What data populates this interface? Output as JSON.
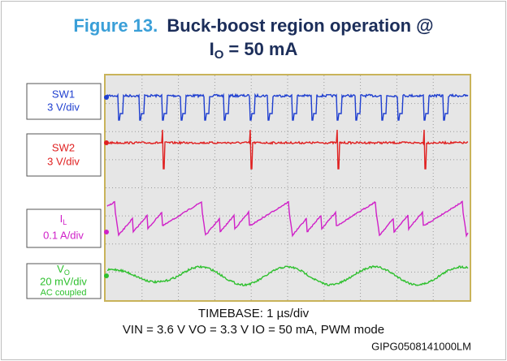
{
  "header": {
    "figure_number": "Figure 13.",
    "title_line1": "Buck-boost region operation @",
    "title_line2_main": "I",
    "title_line2_sub": "O",
    "title_line2_rest": "= 50 mA"
  },
  "channels": [
    {
      "name": "SW1",
      "scale": "3 V/div"
    },
    {
      "name": "SW2",
      "scale": "3 V/div"
    },
    {
      "name_main": "I",
      "name_sub": "L",
      "scale": "0.1 A/div"
    },
    {
      "name_main": "V",
      "name_sub": "O",
      "scale": "20 mV/div",
      "note": "AC coupled"
    }
  ],
  "caption": {
    "timebase": "TIMEBASE: 1 µs/div",
    "conditions": "VIN = 3.6 V VO = 3.3 V IO = 50 mA, PWM mode",
    "code": "GIPG0508141000LM"
  }
}
